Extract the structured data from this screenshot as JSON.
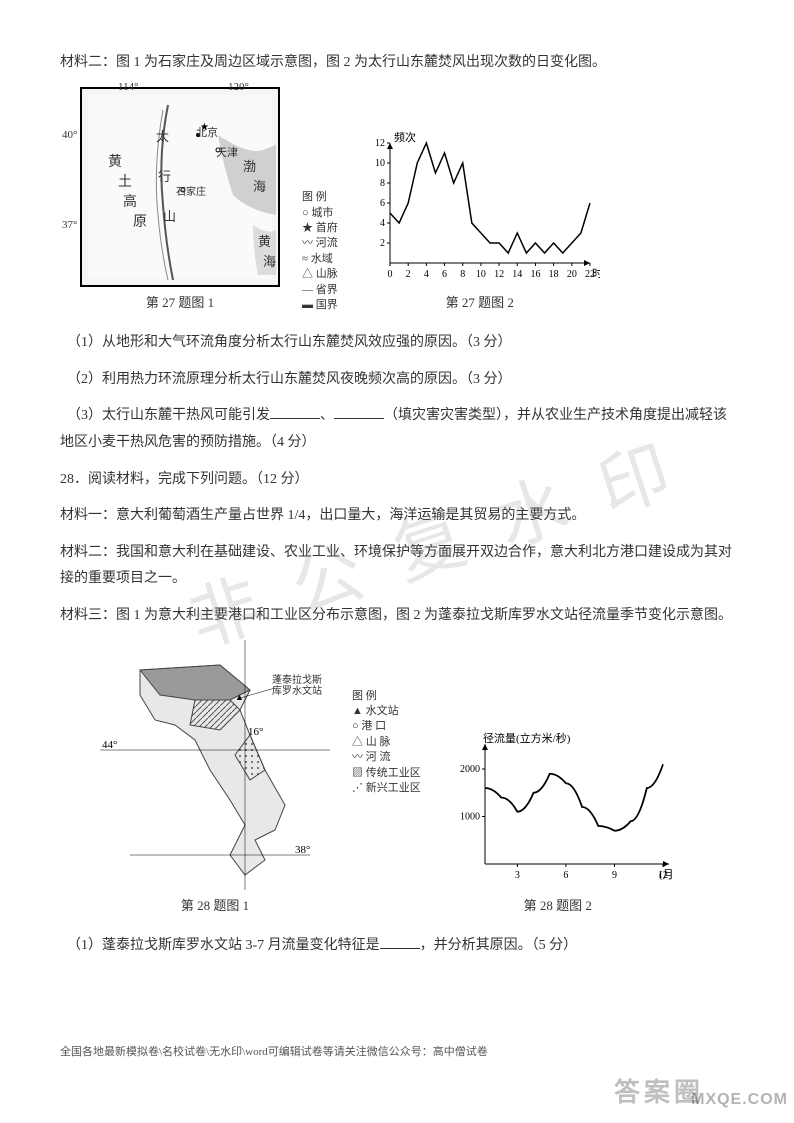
{
  "p_material2": "材料二：图 1 为石家庄及周边区域示意图，图 2 为太行山东麓焚风出现次数的日变化图。",
  "map27": {
    "lon_left": "114°",
    "lon_right": "120°",
    "lat_top": "40°",
    "lat_bot": "37°",
    "labels": {
      "beijing": "北京",
      "tianjin": "天津",
      "shijiazhuang": "石家庄",
      "huangtu": "黄",
      "tu": "土",
      "gao": "高",
      "yuan": "原",
      "taihang": "太",
      "hang": "行",
      "shan": "山",
      "bohai": "渤",
      "hai": "海",
      "huanghai": "黄",
      "huanghai2": "海"
    },
    "caption": "第 27 题图 1"
  },
  "legend27": {
    "title": "图 例",
    "items": [
      "○ 城市",
      "★ 首府",
      "〰 河流",
      "≈ 水域",
      "△ 山脉",
      "— 省界",
      "▬ 国界"
    ]
  },
  "chart27": {
    "ylabel": "频次",
    "xlabel": "时",
    "ymax": 12,
    "ytick": 2,
    "xmax": 22,
    "xtick": 2,
    "axis_color": "#000000",
    "line_color": "#000000",
    "background": "#ffffff",
    "series": [
      {
        "x": 0,
        "y": 5
      },
      {
        "x": 1,
        "y": 4
      },
      {
        "x": 2,
        "y": 6
      },
      {
        "x": 3,
        "y": 10
      },
      {
        "x": 4,
        "y": 12
      },
      {
        "x": 5,
        "y": 9
      },
      {
        "x": 6,
        "y": 11
      },
      {
        "x": 7,
        "y": 8
      },
      {
        "x": 8,
        "y": 10
      },
      {
        "x": 9,
        "y": 4
      },
      {
        "x": 10,
        "y": 3
      },
      {
        "x": 11,
        "y": 2
      },
      {
        "x": 12,
        "y": 2
      },
      {
        "x": 13,
        "y": 1
      },
      {
        "x": 14,
        "y": 3
      },
      {
        "x": 15,
        "y": 1
      },
      {
        "x": 16,
        "y": 2
      },
      {
        "x": 17,
        "y": 1
      },
      {
        "x": 18,
        "y": 2
      },
      {
        "x": 19,
        "y": 1
      },
      {
        "x": 20,
        "y": 2
      },
      {
        "x": 21,
        "y": 3
      },
      {
        "x": 22,
        "y": 6
      }
    ],
    "caption": "第 27 题图 2"
  },
  "q27_1": "（1）从地形和大气环流角度分析太行山东麓焚风效应强的原因。（3 分）",
  "q27_2": "（2）利用热力环流原理分析太行山东麓焚风夜晚频次高的原因。（3 分）",
  "q27_3a": "（3）太行山东麓干热风可能引发",
  "q27_3b": "、",
  "q27_3c": "（填灾害灾害类型），并从农业生产技术角度提出减轻该地区小麦干热风危害的预防措施。（4 分）",
  "q28_head": "28．阅读材料，完成下列问题。（12 分）",
  "m28_1": "材料一：意大利葡萄酒生产量占世界 1/4，出口量大，海洋运输是其贸易的主要方式。",
  "m28_2": "材料二：我国和意大利在基础建设、农业工业、环境保护等方面展开双边合作，意大利北方港口建设成为其对接的重要项目之一。",
  "m28_3": "材料三：图 1 为意大利主要港口和工业区分布示意图，图 2 为蓬泰拉戈斯库罗水文站径流量季节变化示意图。",
  "legend28": {
    "title": "图 例",
    "items": [
      "▲ 水文站",
      "○ 港 口",
      "△ 山 脉",
      "〰 河 流",
      "▨ 传统工业区",
      "⋰ 新兴工业区"
    ]
  },
  "map28": {
    "caption": "第 28 题图 1",
    "lat": "44°",
    "lon1": "16°",
    "lon2": "38°",
    "station_label": "蓬泰拉戈斯库罗水文站"
  },
  "chart28": {
    "ylabel": "径流量(立方米/秒)",
    "xlabel": "(月)",
    "yticks": [
      1000,
      2000
    ],
    "xticks": [
      3,
      6,
      9,
      12
    ],
    "axis_color": "#000000",
    "line_color": "#000000",
    "series": [
      {
        "x": 1,
        "y": 1600
      },
      {
        "x": 2,
        "y": 1400
      },
      {
        "x": 3,
        "y": 1100
      },
      {
        "x": 4,
        "y": 1500
      },
      {
        "x": 5,
        "y": 1900
      },
      {
        "x": 6,
        "y": 1700
      },
      {
        "x": 7,
        "y": 1200
      },
      {
        "x": 8,
        "y": 800
      },
      {
        "x": 9,
        "y": 700
      },
      {
        "x": 10,
        "y": 900
      },
      {
        "x": 11,
        "y": 1600
      },
      {
        "x": 12,
        "y": 2100
      }
    ],
    "caption": "第 28 题图 2"
  },
  "q28_1a": "（1）蓬泰拉戈斯库罗水文站 3-7 月流量变化特征是",
  "q28_1b": "，并分析其原因。（5 分）",
  "footer": "全国各地最新模拟卷\\名校试卷\\无水印\\word可编辑试卷等请关注微信公众号：高中僧试卷",
  "wm_text1": "答案圈",
  "wm_text2": "MXQE.COM",
  "diag_wm": "非 公 复 水 印"
}
